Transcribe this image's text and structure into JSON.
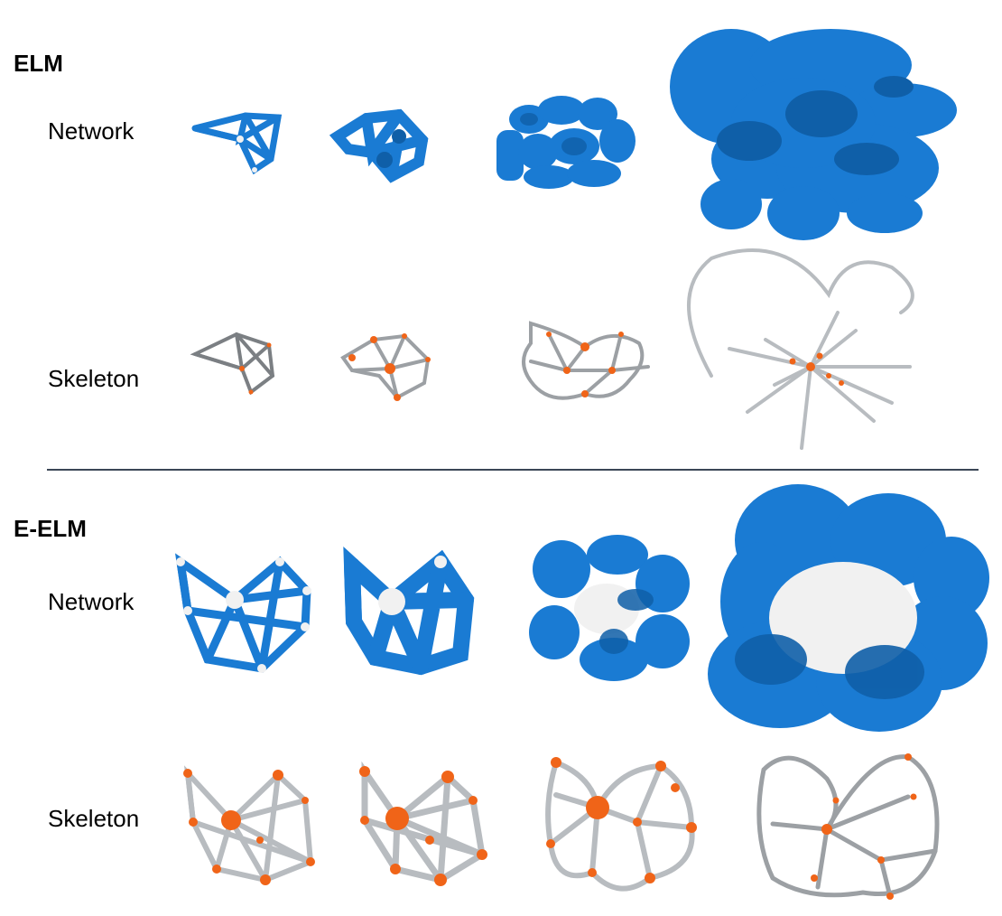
{
  "sections": [
    {
      "title": "ELM",
      "rows": [
        {
          "label": "Network",
          "kind": "network"
        },
        {
          "label": "Skeleton",
          "kind": "skeleton"
        }
      ]
    },
    {
      "title": "E-ELM",
      "rows": [
        {
          "label": "Network",
          "kind": "network"
        },
        {
          "label": "Skeleton",
          "kind": "skeleton"
        }
      ]
    }
  ],
  "colors": {
    "network_tube": "#1a7bd3",
    "network_tube_dark": "#0f5fa8",
    "network_node": "#f1f1f1",
    "skeleton_tube": "#b8bcc0",
    "skeleton_tube_dark": "#6e7276",
    "skeleton_node": "#f06418",
    "divider": "#3b4656"
  }
}
